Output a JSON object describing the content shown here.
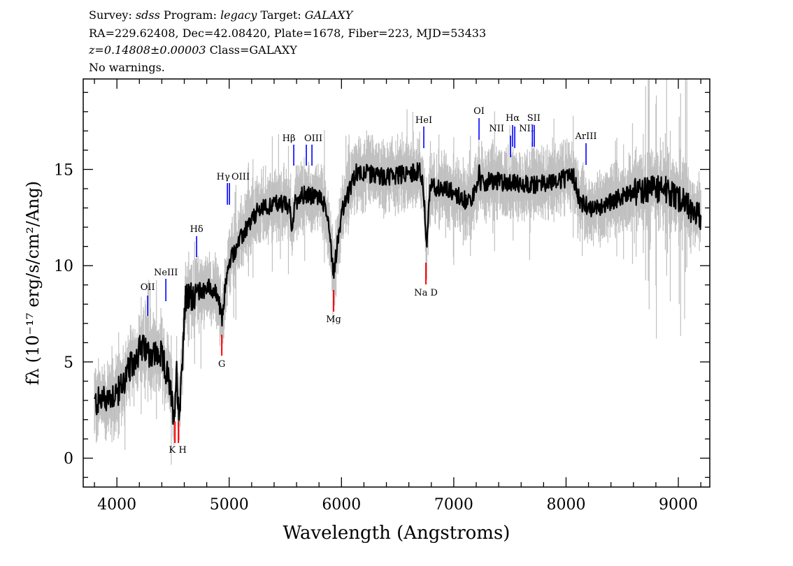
{
  "header": {
    "line1": {
      "survey_label": "Survey:",
      "survey": "sdss",
      "program_label": "Program:",
      "program": "legacy",
      "target_label": "Target:",
      "target": "GALAXY"
    },
    "line2": "RA=229.62408, Dec=42.08420, Plate=1678, Fiber=223, MJD=53433",
    "line3": {
      "redshift": "z=0.14808±0.00003",
      "class": "Class=GALAXY"
    },
    "line4": "No warnings."
  },
  "chart_data": {
    "type": "line",
    "xlabel": "Wavelength (Angstroms)",
    "ylabel": "fλ (10⁻¹⁷ erg/s/cm²/Ang)",
    "xlim": [
      3700,
      9280
    ],
    "ylim": [
      -1.5,
      19.7
    ],
    "x_ticks": [
      4000,
      5000,
      6000,
      7000,
      8000,
      9000
    ],
    "y_ticks": [
      0,
      5,
      10,
      15
    ],
    "grid": false,
    "series": [
      {
        "role": "flux",
        "color": "#000000",
        "points": [
          [
            3788,
            2.8
          ],
          [
            3894,
            3.1
          ],
          [
            4019,
            3.5
          ],
          [
            4205,
            5.7
          ],
          [
            4392,
            5.3
          ],
          [
            4455,
            4.2
          ],
          [
            4510,
            2.2
          ],
          [
            4530,
            4.6
          ],
          [
            4555,
            2.2
          ],
          [
            4610,
            8.2
          ],
          [
            4704,
            8.6
          ],
          [
            4828,
            8.9
          ],
          [
            4900,
            8.4
          ],
          [
            4934,
            7.1
          ],
          [
            4970,
            9.2
          ],
          [
            5015,
            10.4
          ],
          [
            5140,
            11.8
          ],
          [
            5264,
            12.9
          ],
          [
            5451,
            13.3
          ],
          [
            5540,
            13.0
          ],
          [
            5557,
            11.7
          ],
          [
            5580,
            13.2
          ],
          [
            5638,
            13.7
          ],
          [
            5824,
            13.5
          ],
          [
            5880,
            12.5
          ],
          [
            5930,
            9.6
          ],
          [
            5970,
            11.5
          ],
          [
            6011,
            12.9
          ],
          [
            6136,
            14.9
          ],
          [
            6385,
            14.6
          ],
          [
            6696,
            14.9
          ],
          [
            6727,
            14.3
          ],
          [
            6758,
            11.0
          ],
          [
            6790,
            14.1
          ],
          [
            6945,
            14.0
          ],
          [
            7132,
            13.3
          ],
          [
            7215,
            14.0
          ],
          [
            7225,
            15.5
          ],
          [
            7240,
            14.2
          ],
          [
            7319,
            14.4
          ],
          [
            7692,
            14.2
          ],
          [
            8066,
            14.6
          ],
          [
            8128,
            13.3
          ],
          [
            8253,
            12.9
          ],
          [
            8564,
            13.8
          ],
          [
            8875,
            14.0
          ],
          [
            9062,
            13.3
          ],
          [
            9168,
            12.6
          ]
        ]
      },
      {
        "role": "error-band",
        "color": "#c0c0c0"
      }
    ],
    "lines": [
      {
        "name": "OII",
        "wavelength": 4274,
        "type": "emission"
      },
      {
        "name": "NeIII",
        "wavelength": 4436,
        "type": "emission"
      },
      {
        "name": "Hδ",
        "wavelength": 4710,
        "type": "emission"
      },
      {
        "name": "Hγ",
        "wavelength": 4984,
        "type": "emission"
      },
      {
        "name": "OIII",
        "wavelength": 5002,
        "type": "emission"
      },
      {
        "name": "Hβ",
        "wavelength": 5575,
        "type": "emission"
      },
      {
        "name": "OIII",
        "wavelength": 5687,
        "type": "emission"
      },
      {
        "name": "",
        "wavelength": 5737,
        "type": "emission"
      },
      {
        "name": "HeI",
        "wavelength": 6733,
        "type": "emission"
      },
      {
        "name": "OI",
        "wavelength": 7225,
        "type": "emission"
      },
      {
        "name": "NII",
        "wavelength": 7506,
        "type": "emission"
      },
      {
        "name": "Hα",
        "wavelength": 7524,
        "type": "emission"
      },
      {
        "name": "NII",
        "wavelength": 7543,
        "type": "emission"
      },
      {
        "name": "SII",
        "wavelength": 7700,
        "type": "emission"
      },
      {
        "name": "",
        "wavelength": 7717,
        "type": "emission"
      },
      {
        "name": "ArIII",
        "wavelength": 8178,
        "type": "emission"
      },
      {
        "name": "K",
        "wavelength": 4517,
        "type": "absorption"
      },
      {
        "name": "H",
        "wavelength": 4548,
        "type": "absorption"
      },
      {
        "name": "G",
        "wavelength": 4934,
        "type": "absorption"
      },
      {
        "name": "Mg",
        "wavelength": 5930,
        "type": "absorption"
      },
      {
        "name": "Na D",
        "wavelength": 6752,
        "type": "absorption"
      }
    ],
    "colors": {
      "emission": "#0000ff",
      "absorption": "#ff0000",
      "flux": "#000000",
      "error": "#c0c0c0"
    }
  }
}
